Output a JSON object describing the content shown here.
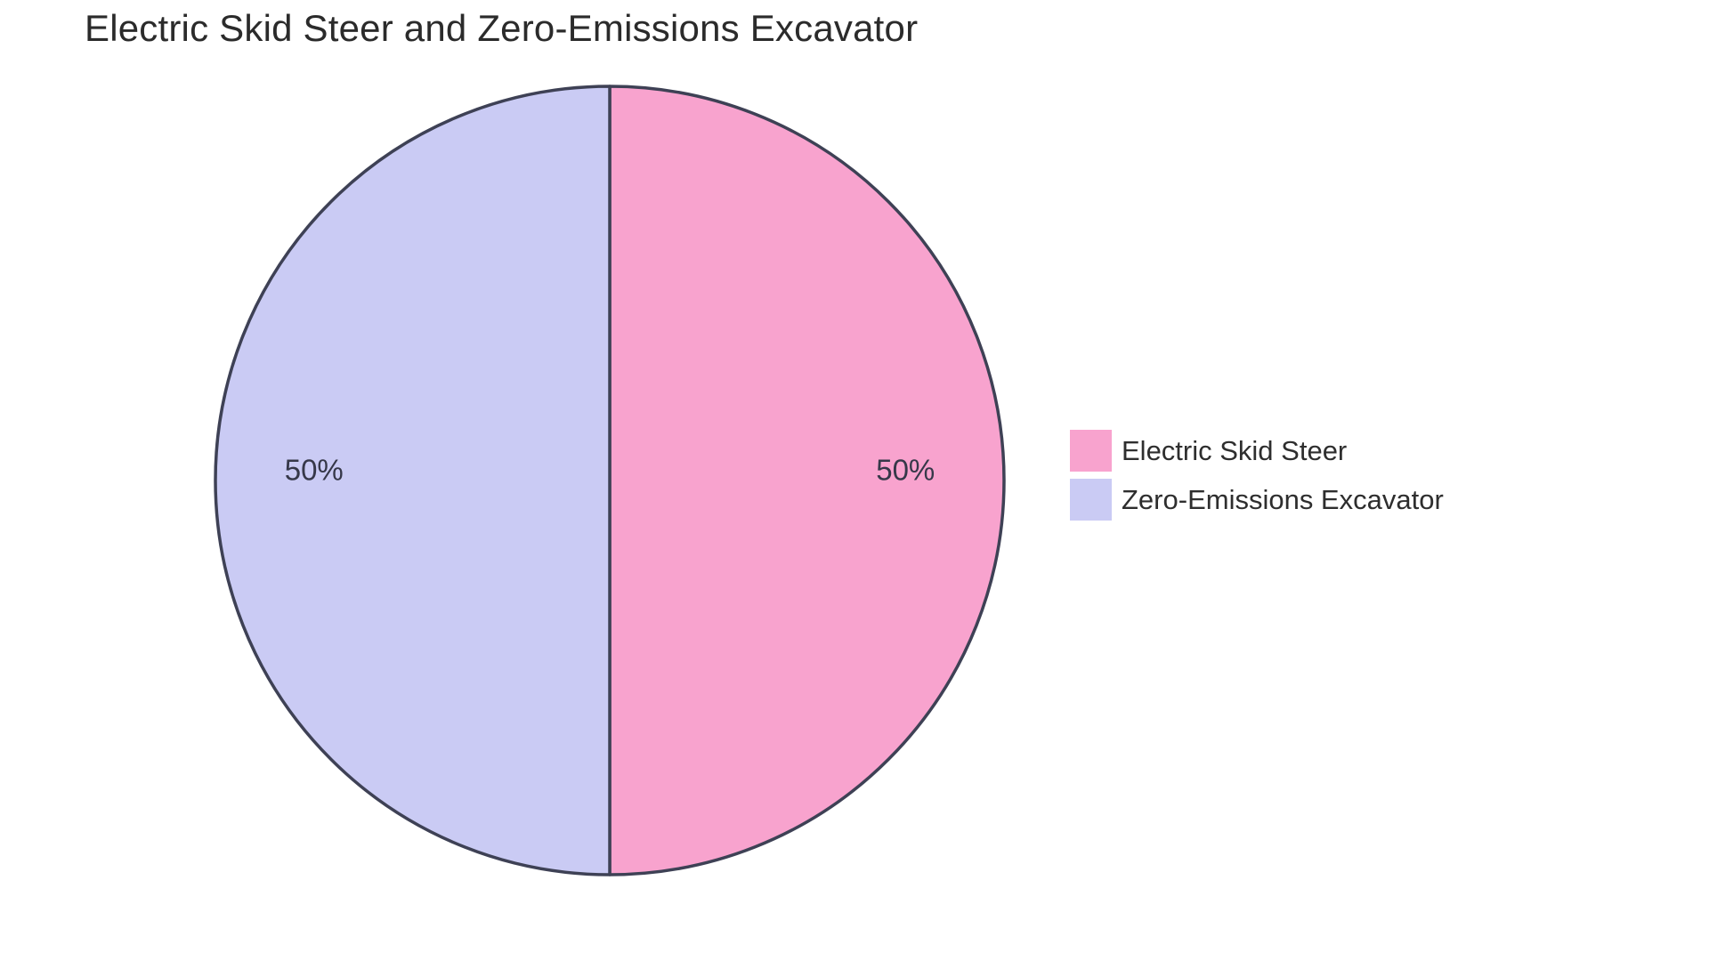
{
  "title": "Electric Skid Steer and Zero-Emissions Excavator",
  "chart_data": {
    "type": "pie",
    "title": "Electric Skid Steer and Zero-Emissions Excavator",
    "slices": [
      {
        "label": "Electric Skid Steer",
        "value": 50,
        "pct_label": "50%",
        "color": "#F8A3CE"
      },
      {
        "label": "Zero-Emissions Excavator",
        "value": 50,
        "pct_label": "50%",
        "color": "#CACBF4"
      }
    ],
    "start_angle_deg": -90,
    "direction": "clockwise",
    "stroke_color": "#3E4155",
    "stroke_width": 3.5,
    "label_color": "#363849",
    "legend_position": "right",
    "background": "#FFFFFF"
  }
}
